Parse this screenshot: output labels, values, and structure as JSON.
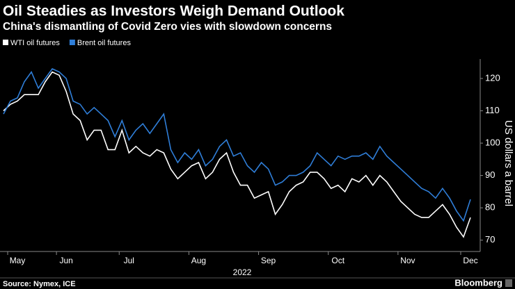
{
  "chart_data": {
    "type": "line",
    "title": "Oil Steadies as Investors Weigh Demand Outlook",
    "subtitle": "China's dismantling of Covid Zero vies with slowdown concerns",
    "x_label": "2022",
    "y_label": "US dollars a barrel",
    "source": "Source: Nymex, ICE",
    "brand": "Bloomberg",
    "categories": [
      null,
      null,
      "May",
      null,
      null,
      null,
      null,
      null,
      null,
      "Jun",
      null,
      null,
      null,
      null,
      null,
      null,
      null,
      null,
      "Jul",
      null,
      null,
      null,
      null,
      null,
      null,
      null,
      null,
      null,
      "Aug",
      null,
      null,
      null,
      null,
      null,
      null,
      null,
      null,
      null,
      "Sep",
      null,
      null,
      null,
      null,
      null,
      null,
      null,
      null,
      null,
      "Oct",
      null,
      null,
      null,
      null,
      null,
      null,
      null,
      null,
      null,
      "Nov",
      null,
      null,
      null,
      null,
      null,
      null,
      null,
      null,
      "Dec"
    ],
    "series": [
      {
        "name": "WTI oil futures",
        "color": "#ffffff",
        "values": [
          110,
          112,
          113,
          115,
          115,
          115,
          119,
          122,
          121,
          116,
          109,
          107,
          101,
          104,
          104,
          98,
          98,
          104,
          97,
          99,
          97,
          96,
          98,
          97,
          92,
          89,
          91,
          93,
          94,
          89,
          91,
          95,
          97,
          91,
          87,
          87,
          83,
          84,
          85,
          78,
          81,
          85,
          87,
          88,
          91,
          91,
          89,
          86,
          87,
          85,
          89,
          88,
          90,
          87,
          90,
          88,
          85,
          82,
          80,
          78,
          77,
          77,
          79,
          81,
          78,
          74,
          71,
          77
        ]
      },
      {
        "name": "Brent oil futures",
        "color": "#2f7ed8",
        "values": [
          109,
          113,
          114,
          119,
          122,
          117,
          120,
          123,
          122,
          120,
          113,
          112,
          109,
          111,
          109,
          107,
          102,
          107,
          101,
          104,
          106,
          103,
          106,
          109,
          98,
          94,
          97,
          95,
          98,
          93,
          95,
          99,
          101,
          96,
          97,
          93,
          91,
          94,
          92,
          87,
          88,
          90,
          90,
          91,
          93,
          97,
          95,
          93,
          96,
          95,
          96,
          96,
          97,
          95,
          99,
          96,
          94,
          92,
          90,
          88,
          86,
          85,
          83,
          86,
          83,
          79,
          76,
          82.6
        ]
      }
    ],
    "ylim": [
      66.5,
      126
    ],
    "yticks": [
      70,
      80,
      90,
      100,
      110,
      120
    ],
    "legend": "top-left"
  }
}
